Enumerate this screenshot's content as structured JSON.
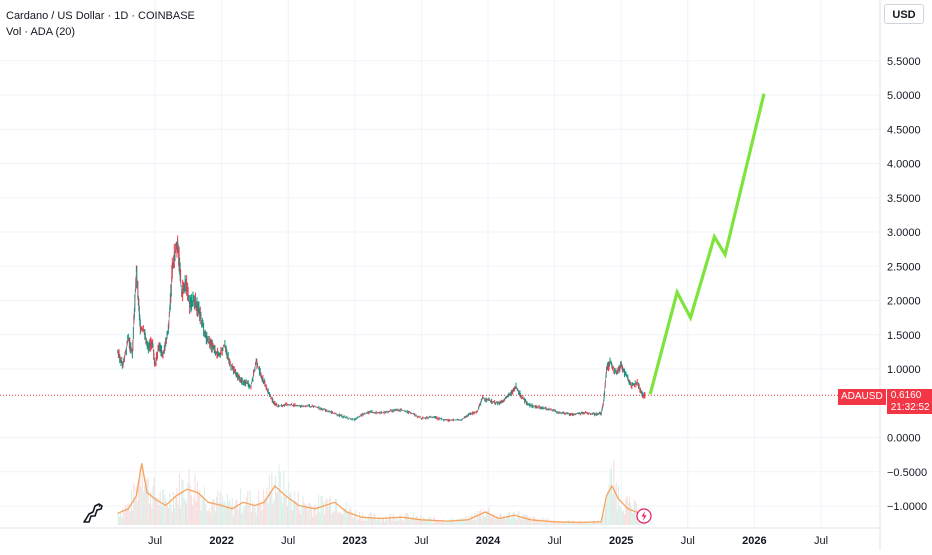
{
  "header": {
    "title": "Cardano / US Dollar · 1D · COINBASE",
    "volume_label": "Vol · ADA (20)"
  },
  "currency": "USD",
  "last_price": {
    "symbol": "ADAUSD",
    "value": "0.6160",
    "countdown": "21:32:52",
    "color": "#f23645"
  },
  "colors": {
    "up": "#089981",
    "down": "#f23645",
    "projection": "#7ee43c",
    "volume_ma": "#f7a35c",
    "grid": "#f0f3fa"
  },
  "icons": {
    "logo": "tradingview-dino-icon",
    "event": "lightning-icon"
  },
  "chart_data": {
    "type": "line",
    "title": "Cardano / US Dollar · 1D · COINBASE",
    "y_ticks": [
      "5.5000",
      "5.0000",
      "4.5000",
      "4.0000",
      "3.5000",
      "3.0000",
      "2.5000",
      "2.0000",
      "1.5000",
      "1.0000",
      "0.0000",
      "−0.5000",
      "−1.0000"
    ],
    "x_ticks": [
      {
        "label": "Jul",
        "t": 2021.5,
        "bold": false
      },
      {
        "label": "2022",
        "t": 2022.0,
        "bold": true
      },
      {
        "label": "Jul",
        "t": 2022.5,
        "bold": false
      },
      {
        "label": "2023",
        "t": 2023.0,
        "bold": true
      },
      {
        "label": "Jul",
        "t": 2023.5,
        "bold": false
      },
      {
        "label": "2024",
        "t": 2024.0,
        "bold": true
      },
      {
        "label": "Jul",
        "t": 2024.5,
        "bold": false
      },
      {
        "label": "2025",
        "t": 2025.0,
        "bold": true
      },
      {
        "label": "Jul",
        "t": 2025.5,
        "bold": false
      },
      {
        "label": "2026",
        "t": 2026.0,
        "bold": true
      },
      {
        "label": "Jul",
        "t": 2026.5,
        "bold": false
      }
    ],
    "ylim": [
      -1.1,
      5.6
    ],
    "xlim": [
      2020.75,
      2026.95
    ],
    "last_price": 0.616,
    "price_series": {
      "name": "ADAUSD",
      "points": [
        [
          2021.22,
          1.25
        ],
        [
          2021.26,
          1.05
        ],
        [
          2021.3,
          1.45
        ],
        [
          2021.33,
          1.2
        ],
        [
          2021.36,
          2.45
        ],
        [
          2021.39,
          1.6
        ],
        [
          2021.42,
          1.55
        ],
        [
          2021.45,
          1.3
        ],
        [
          2021.48,
          1.4
        ],
        [
          2021.5,
          1.05
        ],
        [
          2021.53,
          1.35
        ],
        [
          2021.56,
          1.2
        ],
        [
          2021.6,
          1.55
        ],
        [
          2021.63,
          2.45
        ],
        [
          2021.67,
          2.9
        ],
        [
          2021.7,
          2.1
        ],
        [
          2021.73,
          2.3
        ],
        [
          2021.76,
          1.95
        ],
        [
          2021.8,
          2.0
        ],
        [
          2021.83,
          1.85
        ],
        [
          2021.87,
          1.55
        ],
        [
          2021.9,
          1.4
        ],
        [
          2021.94,
          1.3
        ],
        [
          2021.98,
          1.2
        ],
        [
          2022.02,
          1.35
        ],
        [
          2022.06,
          1.1
        ],
        [
          2022.1,
          0.95
        ],
        [
          2022.14,
          0.85
        ],
        [
          2022.18,
          0.8
        ],
        [
          2022.22,
          0.75
        ],
        [
          2022.26,
          1.1
        ],
        [
          2022.3,
          0.9
        ],
        [
          2022.34,
          0.7
        ],
        [
          2022.38,
          0.55
        ],
        [
          2022.42,
          0.45
        ],
        [
          2022.48,
          0.48
        ],
        [
          2022.55,
          0.47
        ],
        [
          2022.62,
          0.46
        ],
        [
          2022.7,
          0.45
        ],
        [
          2022.78,
          0.4
        ],
        [
          2022.85,
          0.35
        ],
        [
          2022.92,
          0.3
        ],
        [
          2023.0,
          0.26
        ],
        [
          2023.06,
          0.34
        ],
        [
          2023.12,
          0.37
        ],
        [
          2023.2,
          0.36
        ],
        [
          2023.28,
          0.39
        ],
        [
          2023.35,
          0.4
        ],
        [
          2023.42,
          0.36
        ],
        [
          2023.5,
          0.28
        ],
        [
          2023.58,
          0.3
        ],
        [
          2023.65,
          0.27
        ],
        [
          2023.72,
          0.25
        ],
        [
          2023.8,
          0.26
        ],
        [
          2023.86,
          0.34
        ],
        [
          2023.92,
          0.38
        ],
        [
          2023.96,
          0.58
        ],
        [
          2024.02,
          0.53
        ],
        [
          2024.08,
          0.5
        ],
        [
          2024.12,
          0.55
        ],
        [
          2024.17,
          0.63
        ],
        [
          2024.21,
          0.75
        ],
        [
          2024.25,
          0.6
        ],
        [
          2024.3,
          0.48
        ],
        [
          2024.36,
          0.45
        ],
        [
          2024.42,
          0.43
        ],
        [
          2024.48,
          0.4
        ],
        [
          2024.55,
          0.36
        ],
        [
          2024.62,
          0.34
        ],
        [
          2024.68,
          0.35
        ],
        [
          2024.74,
          0.36
        ],
        [
          2024.8,
          0.34
        ],
        [
          2024.85,
          0.35
        ],
        [
          2024.87,
          0.55
        ],
        [
          2024.89,
          1.0
        ],
        [
          2024.92,
          1.1
        ],
        [
          2024.96,
          0.95
        ],
        [
          2025.0,
          1.05
        ],
        [
          2025.04,
          0.9
        ],
        [
          2025.08,
          0.75
        ],
        [
          2025.12,
          0.8
        ],
        [
          2025.16,
          0.62
        ],
        [
          2025.18,
          0.616
        ]
      ]
    },
    "projection_series": {
      "name": "",
      "points": [
        [
          2025.22,
          0.65
        ],
        [
          2025.42,
          2.12
        ],
        [
          2025.52,
          1.75
        ],
        [
          2025.7,
          2.93
        ],
        [
          2025.78,
          2.67
        ],
        [
          2026.07,
          5.0
        ]
      ]
    },
    "volume_ma": {
      "name": "",
      "points": [
        [
          2021.22,
          0.18
        ],
        [
          2021.3,
          0.25
        ],
        [
          2021.36,
          0.45
        ],
        [
          2021.4,
          0.95
        ],
        [
          2021.44,
          0.5
        ],
        [
          2021.5,
          0.4
        ],
        [
          2021.58,
          0.3
        ],
        [
          2021.66,
          0.45
        ],
        [
          2021.74,
          0.55
        ],
        [
          2021.82,
          0.5
        ],
        [
          2021.9,
          0.35
        ],
        [
          2022.0,
          0.3
        ],
        [
          2022.08,
          0.25
        ],
        [
          2022.16,
          0.35
        ],
        [
          2022.25,
          0.3
        ],
        [
          2022.32,
          0.35
        ],
        [
          2022.4,
          0.6
        ],
        [
          2022.48,
          0.45
        ],
        [
          2022.58,
          0.3
        ],
        [
          2022.7,
          0.25
        ],
        [
          2022.85,
          0.35
        ],
        [
          2022.94,
          0.2
        ],
        [
          2023.05,
          0.12
        ],
        [
          2023.2,
          0.1
        ],
        [
          2023.35,
          0.12
        ],
        [
          2023.5,
          0.08
        ],
        [
          2023.7,
          0.06
        ],
        [
          2023.85,
          0.08
        ],
        [
          2023.98,
          0.2
        ],
        [
          2024.08,
          0.1
        ],
        [
          2024.2,
          0.15
        ],
        [
          2024.32,
          0.08
        ],
        [
          2024.5,
          0.05
        ],
        [
          2024.7,
          0.04
        ],
        [
          2024.85,
          0.05
        ],
        [
          2024.89,
          0.45
        ],
        [
          2024.93,
          0.6
        ],
        [
          2024.98,
          0.4
        ],
        [
          2025.05,
          0.25
        ],
        [
          2025.18,
          0.15
        ]
      ]
    }
  }
}
